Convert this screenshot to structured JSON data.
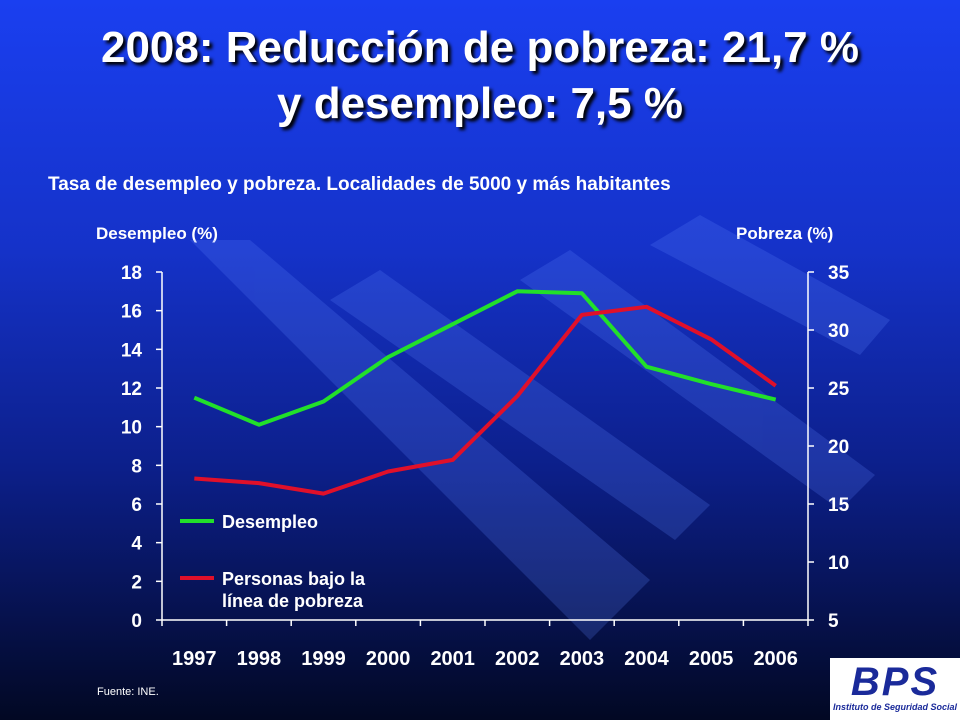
{
  "header": {
    "title_line1": "2008: Reducción de pobreza:  21,7 %",
    "title_line2": "y desempleo: 7,5 %"
  },
  "chart_data": {
    "type": "line",
    "title": "Tasa de desempleo y pobreza. Localidades de 5000 y más habitantes",
    "y_left_label": "Desempleo (%)",
    "y_right_label": "Pobreza (%)",
    "y_left_lim": [
      0,
      18
    ],
    "y_left_ticks": [
      0,
      2,
      4,
      6,
      8,
      10,
      12,
      14,
      16,
      18
    ],
    "y_right_lim": [
      5,
      35
    ],
    "y_right_ticks": [
      5,
      10,
      15,
      20,
      25,
      30,
      35
    ],
    "categories": [
      "1997",
      "1998",
      "1999",
      "2000",
      "2001",
      "2002",
      "2003",
      "2004",
      "2005",
      "2006"
    ],
    "series": [
      {
        "name": "Desempleo",
        "axis": "left",
        "color": "#22e02a",
        "values": [
          11.5,
          10.1,
          11.3,
          13.6,
          15.3,
          17.0,
          16.9,
          13.1,
          12.2,
          11.4
        ]
      },
      {
        "name": "Personas bajo la línea de pobreza",
        "axis": "right",
        "color": "#e0102a",
        "values": [
          17.2,
          16.8,
          15.9,
          17.8,
          18.8,
          24.3,
          31.3,
          32.0,
          29.2,
          25.2
        ]
      }
    ],
    "legend_position": "bottom-left",
    "grid": false
  },
  "footer": {
    "source": "Fuente: INE.",
    "logo_letters": "BPS",
    "logo_tagline": "Instituto de Seguridad Social"
  }
}
